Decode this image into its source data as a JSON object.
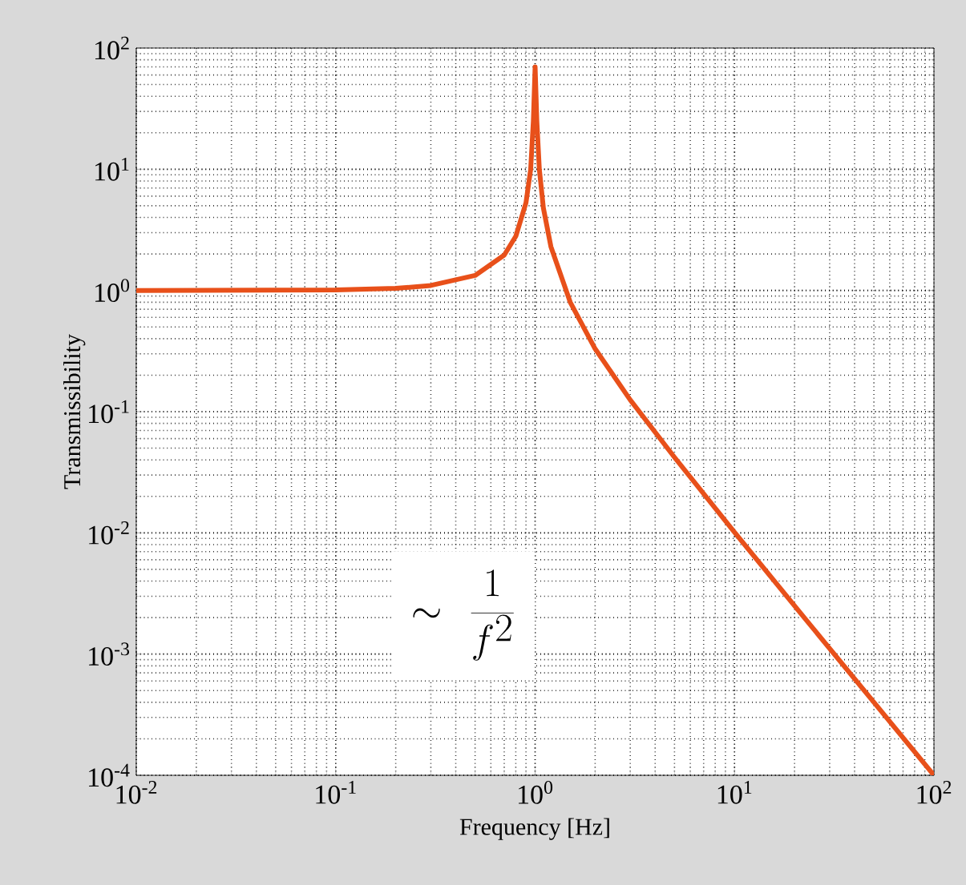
{
  "chart_data": {
    "type": "line",
    "xlabel": "Frequency [Hz]",
    "ylabel": "Transmissibility",
    "x": [
      0.01,
      0.1,
      0.2,
      0.3,
      0.5,
      0.7,
      0.8,
      0.9,
      0.95,
      0.98,
      1.0,
      1.02,
      1.05,
      1.1,
      1.2,
      1.5,
      2,
      3,
      5,
      10,
      20,
      50,
      100
    ],
    "series": [
      {
        "color": "#e8501a",
        "values": [
          1,
          1.01,
          1.04,
          1.1,
          1.33,
          1.96,
          2.8,
          5.3,
          10,
          25,
          70,
          25,
          10,
          4.8,
          2.3,
          0.8,
          0.33,
          0.125,
          0.042,
          0.0101,
          0.0025,
          0.0004,
          0.0001
        ]
      }
    ],
    "log": "xy",
    "grid": true,
    "xlim": [
      0.01,
      100
    ],
    "ylim": [
      0.0001,
      100
    ],
    "xticks": [
      {
        "value": 0.01,
        "label": "10$^{-2}$"
      },
      {
        "value": 0.1,
        "label": "10$^{-1}$"
      },
      {
        "value": 1,
        "label": "10$^{0}$"
      },
      {
        "value": 10,
        "label": "10$^{1}$"
      },
      {
        "value": 100,
        "label": "10$^{2}$"
      }
    ],
    "yticks": [
      {
        "value": 0.0001,
        "label": "10$^{-4}$"
      },
      {
        "value": 0.001,
        "label": "10$^{-3}$"
      },
      {
        "value": 0.01,
        "label": "10$^{-2}$"
      },
      {
        "value": 0.1,
        "label": "10$^{-1}$"
      },
      {
        "value": 1,
        "label": "10$^{0}$"
      },
      {
        "value": 10,
        "label": "10$^{1}$"
      },
      {
        "value": 100,
        "label": "10$^{2}$"
      }
    ],
    "annotations": [
      "\\sim\\ \\frac{1}{f^{2}}"
    ]
  }
}
